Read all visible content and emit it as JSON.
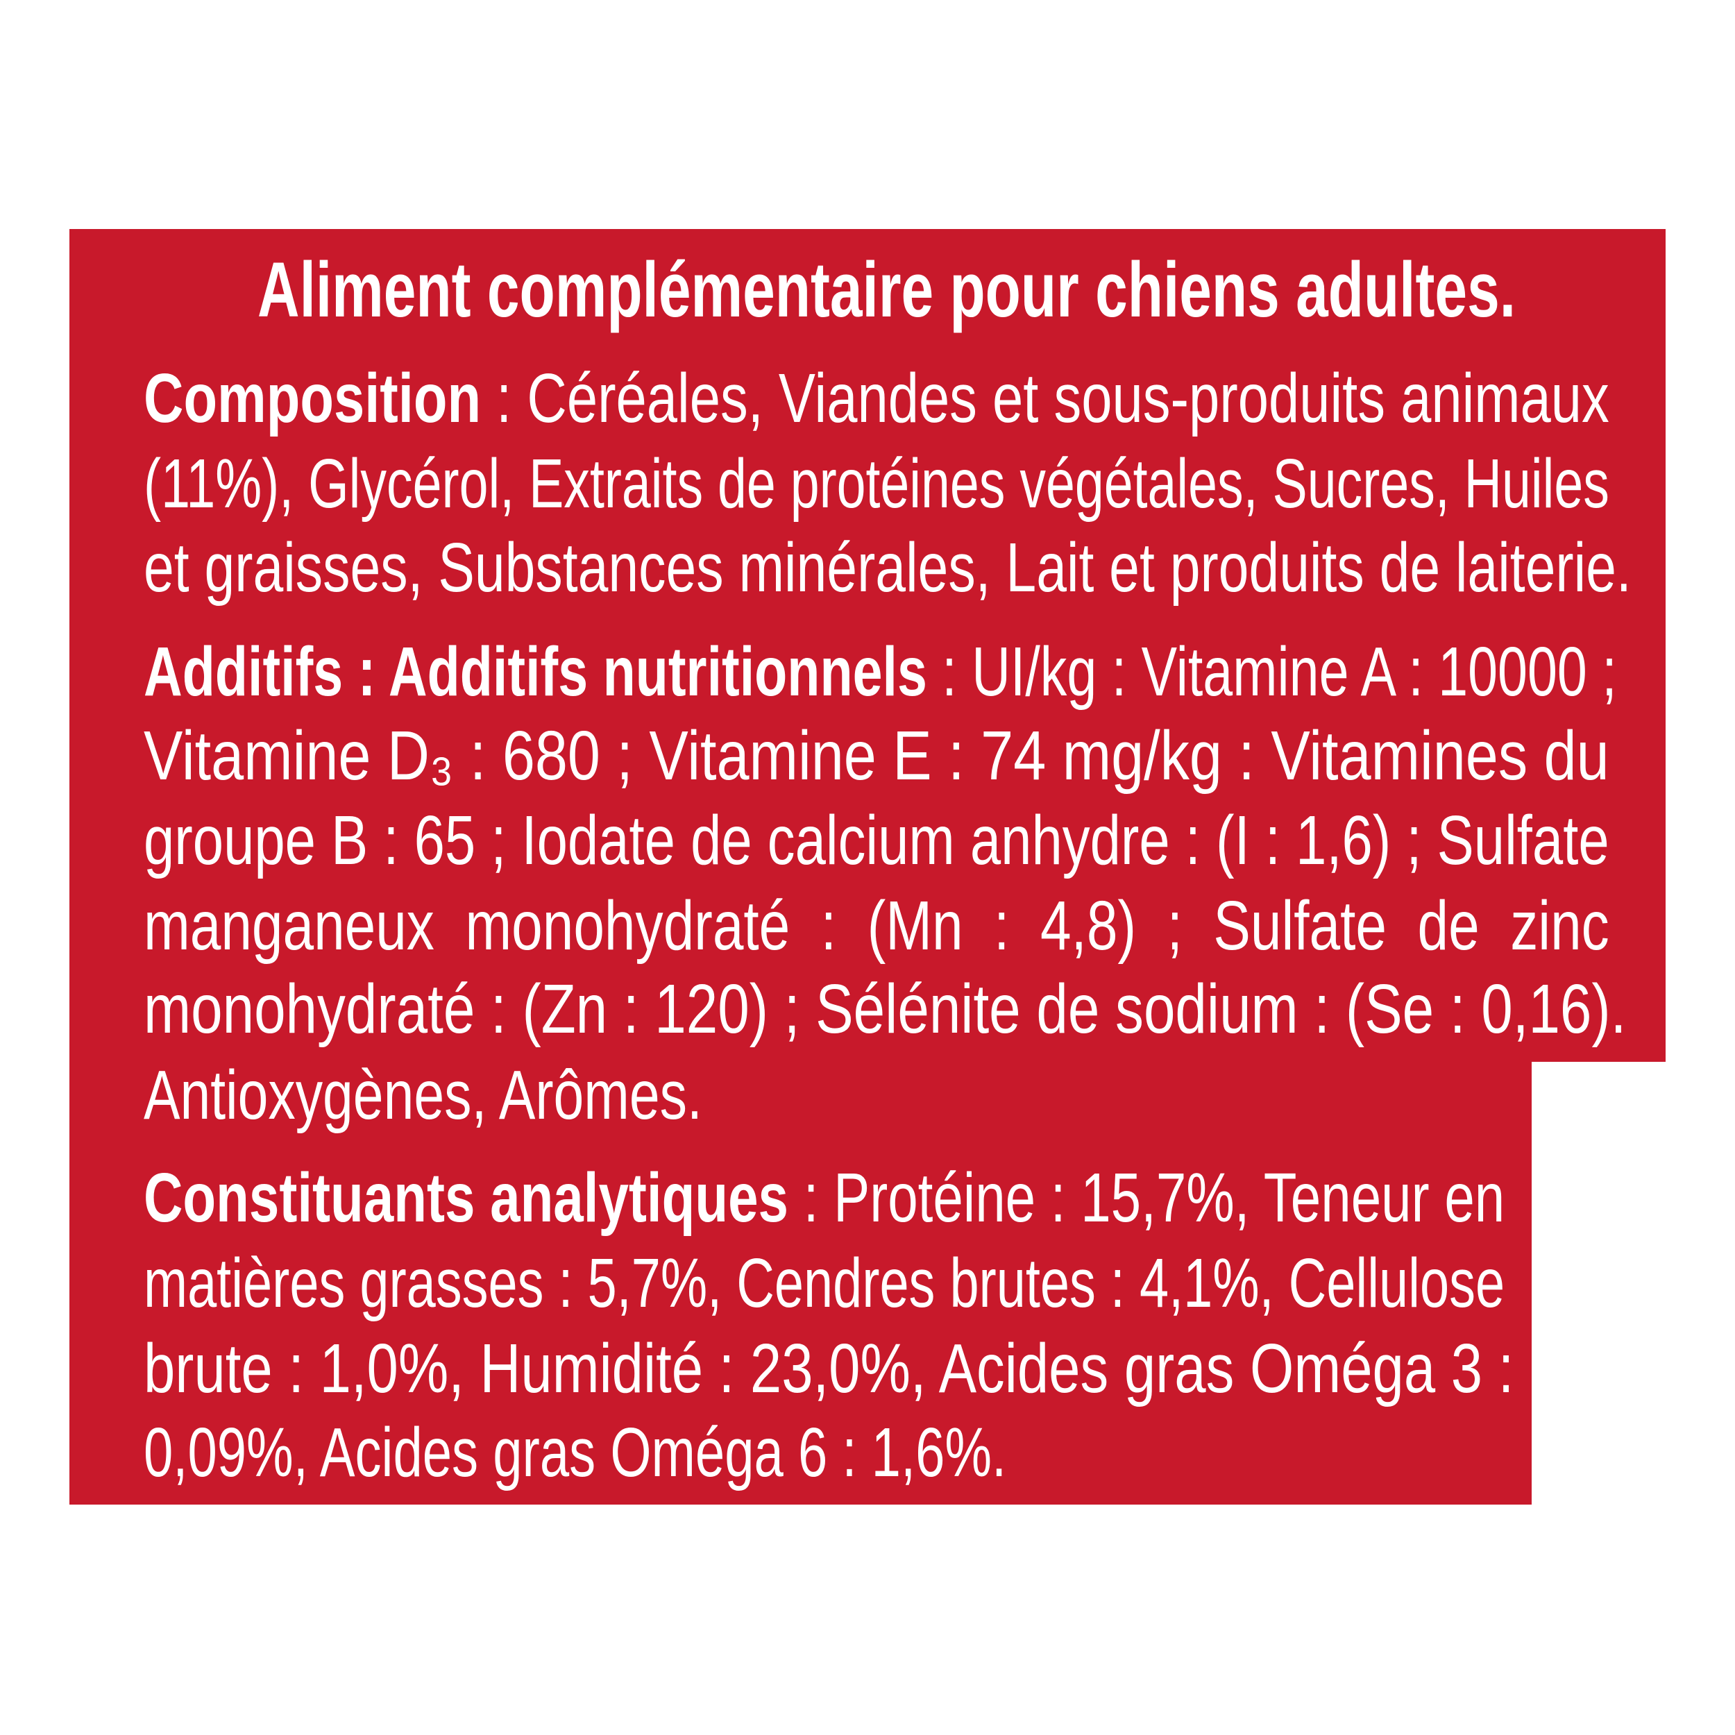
{
  "colors": {
    "panel": "#c8192b",
    "text": "#ffffff"
  },
  "title": "Aliment complémentaire pour chiens adultes.",
  "lines": [
    {
      "bold": "Composition",
      "text": " : Céréales, Viandes et sous-produits animaux"
    },
    {
      "bold": "",
      "text": "(11%), Glycérol, Extraits de protéines végétales, Sucres, Huiles"
    },
    {
      "bold": "",
      "text": "et graisses, Substances minérales, Lait et produits de laiterie."
    },
    {
      "bold": "Additifs : Additifs nutritionnels",
      "text": " : UI/kg : Vitamine A : 10000 ;"
    },
    {
      "bold": "",
      "text": "Vitamine D₃ : 680 ; Vitamine E : 74 mg/kg : Vitamines du"
    },
    {
      "bold": "",
      "text": "groupe B : 65 ; Iodate de calcium anhydre : (I : 1,6) ; Sulfate"
    },
    {
      "bold": "",
      "text": "manganeux  monohydraté  :  (Mn  :  4,8)  ;  Sulfate  de  zinc"
    },
    {
      "bold": "",
      "text": "monohydraté : (Zn : 120) ; Sélénite de sodium : (Se : 0,16)."
    },
    {
      "bold": "",
      "text": "Antioxygènes, Arômes."
    },
    {
      "bold": "Constituants analytiques",
      "text": " : Protéine : 15,7%, Teneur en"
    },
    {
      "bold": "",
      "text": "matières grasses : 5,7%, Cendres brutes : 4,1%, Cellulose"
    },
    {
      "bold": "",
      "text": "brute : 1,0%, Humidité : 23,0%, Acides gras Oméga 3 :"
    },
    {
      "bold": "",
      "text": "0,09%, Acides gras Oméga 6 : 1,6%."
    }
  ]
}
